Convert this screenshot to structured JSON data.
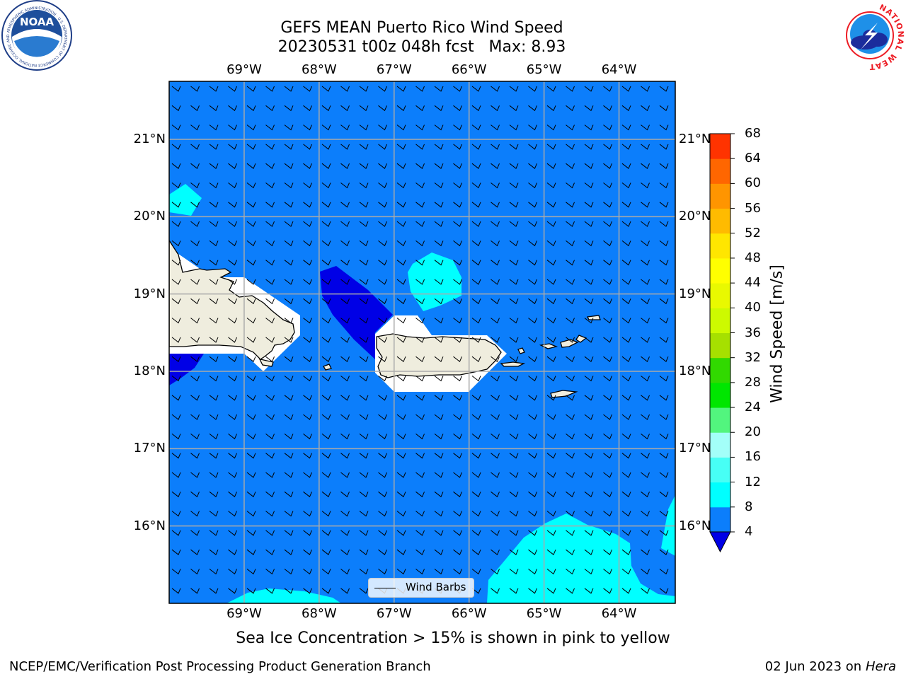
{
  "title": {
    "line1": "GEFS MEAN Puerto Rico Wind Speed",
    "line2": "20230531 t00z 048h fcst   Max: 8.93"
  },
  "map": {
    "lon_labels": [
      "69°W",
      "68°W",
      "67°W",
      "66°W",
      "65°W",
      "64°W"
    ],
    "lat_labels": [
      "21°N",
      "20°N",
      "19°N",
      "18°N",
      "17°N",
      "16°N"
    ],
    "lon_values": [
      -69,
      -68,
      -67,
      -66,
      -65,
      -64
    ],
    "lat_values": [
      21,
      20,
      19,
      18,
      17,
      16
    ],
    "extent": {
      "lon_min": -70,
      "lon_max": -63.25,
      "lat_min": 15,
      "lat_max": 21.75
    },
    "land_color": "#efedde",
    "ocean_base_color": "#0c7efb",
    "grid": true,
    "barbs_label": "Wind Barbs"
  },
  "colorbar": {
    "title": "Wind Speed [m/s]",
    "ticks": [
      68,
      64,
      60,
      56,
      52,
      48,
      44,
      40,
      36,
      32,
      28,
      24,
      20,
      16,
      12,
      8,
      4
    ],
    "levels": [
      4,
      8,
      12,
      16,
      20,
      24,
      28,
      32,
      36,
      40,
      44,
      48,
      52,
      56,
      60,
      64,
      68
    ],
    "colors": [
      "#0c7efb",
      "#00ffff",
      "#47fff5",
      "#a3fff9",
      "#52f57e",
      "#00e600",
      "#31d900",
      "#a6e000",
      "#cdfa00",
      "#e9f900",
      "#ffff00",
      "#ffe600",
      "#ffbb00",
      "#ff9500",
      "#ff6600",
      "#ff3300",
      "#ff0000"
    ],
    "extend_low_color": "#0000e6"
  },
  "subtitle": "Sea Ice Concentration > 15% is shown in pink to yellow",
  "footer": {
    "left": "NCEP/EMC/Verification Post Processing Product Generation Branch",
    "date": "02 Jun 2023 on",
    "host": "Hera"
  },
  "logos": {
    "noaa": "NOAA",
    "noaa_ring": "NATIONAL OCEANIC AND ATMOSPHERIC ADMINISTRATION · U.S. DEPARTMENT OF COMMERCE",
    "nws_ring": "NATIONAL WEATHER SERVICE"
  }
}
